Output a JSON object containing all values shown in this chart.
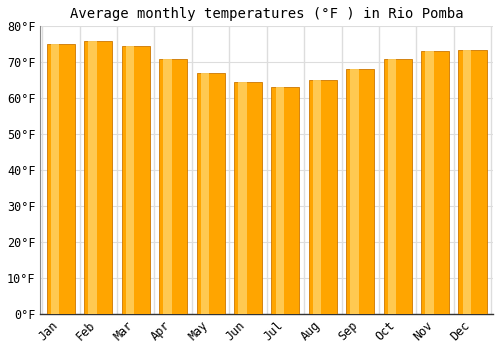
{
  "title": "Average monthly temperatures (°F ) in Rio Pomba",
  "months": [
    "Jan",
    "Feb",
    "Mar",
    "Apr",
    "May",
    "Jun",
    "Jul",
    "Aug",
    "Sep",
    "Oct",
    "Nov",
    "Dec"
  ],
  "values": [
    75,
    76,
    74.5,
    71,
    67,
    64.5,
    63,
    65,
    68,
    71,
    73,
    73.5
  ],
  "bar_color_main": "#FFA500",
  "bar_color_gradient_top": "#FFD060",
  "bar_color_bottom": "#E88000",
  "ylim": [
    0,
    80
  ],
  "yticks": [
    0,
    10,
    20,
    30,
    40,
    50,
    60,
    70,
    80
  ],
  "ytick_labels": [
    "0°F",
    "10°F",
    "20°F",
    "30°F",
    "40°F",
    "50°F",
    "60°F",
    "70°F",
    "80°F"
  ],
  "background_color": "#FFFFFF",
  "plot_bg_color": "#FFFFFF",
  "grid_color": "#DDDDDD",
  "title_fontsize": 10,
  "tick_fontsize": 8.5
}
